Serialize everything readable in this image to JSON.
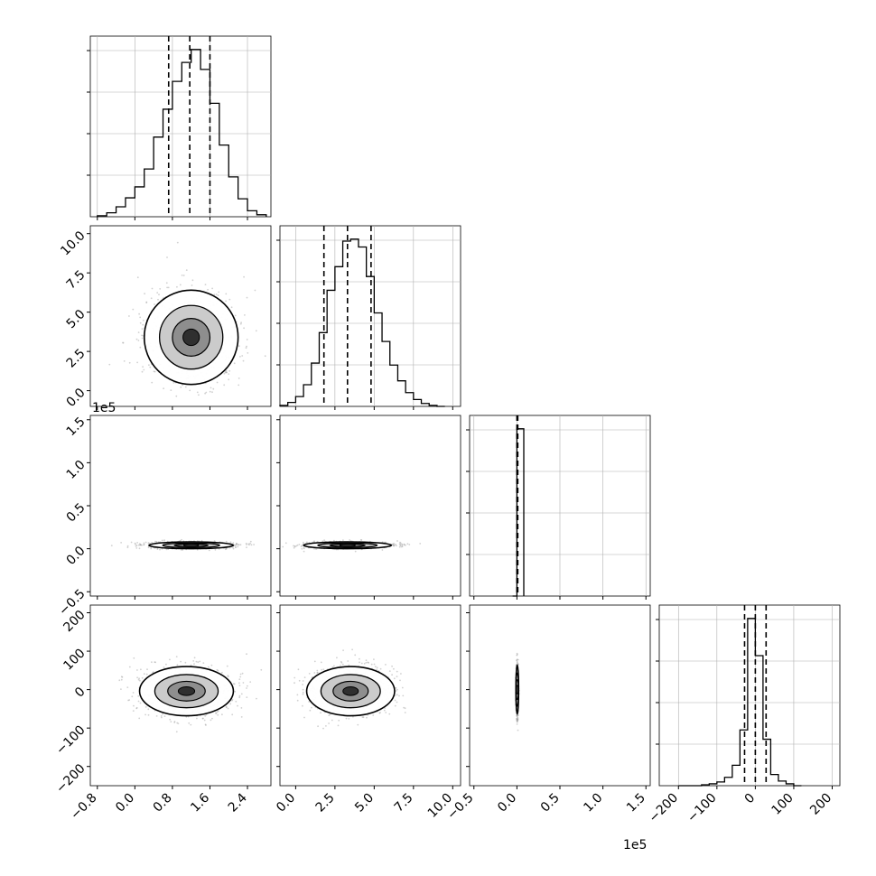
{
  "chart_data": {
    "type": "corner",
    "axis_offset_label": "1e5",
    "grid": true,
    "params": [
      {
        "index": 0,
        "range": [
          -0.95,
          2.9
        ],
        "ticks": [
          {
            "v": -0.8,
            "t": "−0.8"
          },
          {
            "v": 0.0,
            "t": "0.0"
          },
          {
            "v": 0.8,
            "t": "0.8"
          },
          {
            "v": 1.6,
            "t": "1.6"
          },
          {
            "v": 2.4,
            "t": "2.4"
          }
        ],
        "quantiles": [
          0.72,
          1.17,
          1.6
        ],
        "hist_edges": [
          -0.8,
          -0.6,
          -0.4,
          -0.2,
          0.0,
          0.2,
          0.4,
          0.6,
          0.8,
          1.0,
          1.2,
          1.4,
          1.6,
          1.8,
          2.0,
          2.2,
          2.4,
          2.6,
          2.8
        ],
        "hist_counts": [
          1,
          4,
          10,
          19,
          30,
          48,
          80,
          108,
          136,
          155,
          168,
          148,
          114,
          72,
          40,
          18,
          6,
          2
        ]
      },
      {
        "index": 1,
        "range": [
          -1.0,
          10.5
        ],
        "ticks": [
          {
            "v": 0.0,
            "t": "0.0"
          },
          {
            "v": 2.5,
            "t": "2.5"
          },
          {
            "v": 5.0,
            "t": "5.0"
          },
          {
            "v": 7.5,
            "t": "7.5"
          },
          {
            "v": 10.0,
            "t": "10.0"
          }
        ],
        "quantiles": [
          1.8,
          3.3,
          4.8
        ],
        "hist_edges": [
          -1.0,
          -0.5,
          0.0,
          0.5,
          1.0,
          1.5,
          2.0,
          2.5,
          3.0,
          3.5,
          4.0,
          4.5,
          5.0,
          5.5,
          6.0,
          6.5,
          7.0,
          7.5,
          8.0,
          8.5,
          9.0,
          9.5
        ],
        "hist_counts": [
          1,
          4,
          10,
          22,
          44,
          75,
          118,
          142,
          168,
          170,
          162,
          132,
          95,
          66,
          42,
          26,
          14,
          7,
          3,
          1,
          0
        ]
      },
      {
        "index": 2,
        "range": [
          -0.55,
          1.55
        ],
        "ticks": [
          {
            "v": -0.5,
            "t": "−0.5"
          },
          {
            "v": 0.0,
            "t": "0.0"
          },
          {
            "v": 0.5,
            "t": "0.5"
          },
          {
            "v": 1.0,
            "t": "1.0"
          },
          {
            "v": 1.5,
            "t": "1.5"
          }
        ],
        "quantiles": [
          0.0,
          0.005,
          0.01
        ],
        "hist_edges": [
          -0.05,
          0.0,
          0.08
        ],
        "hist_counts": [
          0,
          1000
        ]
      },
      {
        "index": 3,
        "range": [
          -250,
          220
        ],
        "ticks": [
          {
            "v": -200,
            "t": "−200"
          },
          {
            "v": -100,
            "t": "−100"
          },
          {
            "v": 0,
            "t": "0"
          },
          {
            "v": 100,
            "t": "100"
          },
          {
            "v": 200,
            "t": "200"
          }
        ],
        "quantiles": [
          -28,
          0,
          28
        ],
        "hist_edges": [
          -200,
          -180,
          -160,
          -140,
          -120,
          -100,
          -80,
          -60,
          -40,
          -20,
          0,
          20,
          40,
          60,
          80,
          100,
          120
        ],
        "hist_counts": [
          0,
          0,
          0,
          1,
          2,
          4,
          9,
          22,
          60,
          180,
          140,
          50,
          12,
          5,
          2,
          0
        ]
      }
    ],
    "pairs": [
      {
        "x": 0,
        "y": 1,
        "center": [
          1.2,
          3.4
        ],
        "spread": [
          0.5,
          1.5
        ]
      },
      {
        "x": 0,
        "y": 2,
        "center": [
          1.2,
          0.04
        ],
        "spread": [
          0.45,
          0.02
        ]
      },
      {
        "x": 1,
        "y": 2,
        "center": [
          3.3,
          0.04
        ],
        "spread": [
          1.4,
          0.02
        ]
      },
      {
        "x": 0,
        "y": 3,
        "center": [
          1.1,
          -4
        ],
        "spread": [
          0.5,
          32
        ]
      },
      {
        "x": 1,
        "y": 3,
        "center": [
          3.5,
          -4
        ],
        "spread": [
          1.4,
          32
        ]
      },
      {
        "x": 2,
        "y": 3,
        "center": [
          0.004,
          0
        ],
        "spread": [
          0.006,
          32
        ]
      }
    ]
  }
}
